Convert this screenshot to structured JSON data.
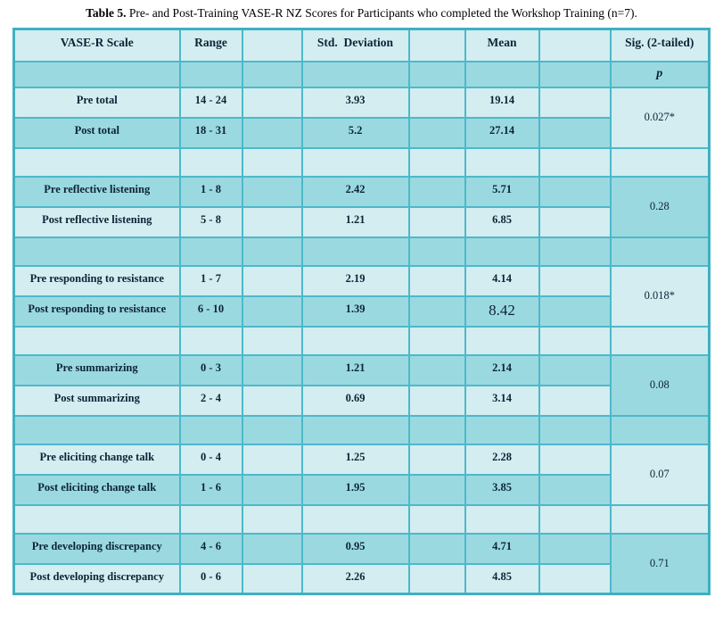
{
  "title": {
    "label": "Table 5.",
    "text": " Pre- and Post-Training VASE-R NZ Scores for Participants who completed the Workshop Training (n=7)."
  },
  "table": {
    "headers": [
      "VASE-R Scale",
      "Range",
      "",
      "Std.  Deviation",
      "",
      "Mean",
      "",
      "Sig. (2-tailed)"
    ],
    "p_label": "p",
    "blocks": [
      {
        "sig": "0.027*",
        "rows": [
          {
            "scale": "Pre total",
            "range": "14 - 24",
            "std": "3.93",
            "mean": "19.14"
          },
          {
            "scale": "Post total",
            "range": "18 - 31",
            "std": "5.2",
            "mean": "27.14"
          }
        ]
      },
      {
        "sig": "0.28",
        "rows": [
          {
            "scale": "Pre reflective listening",
            "range": "1 - 8",
            "std": "2.42",
            "mean": "5.71"
          },
          {
            "scale": "Post reflective listening",
            "range": "5 - 8",
            "std": "1.21",
            "mean": "6.85"
          }
        ]
      },
      {
        "sig": "0.018*",
        "rows": [
          {
            "scale": "Pre responding to resistance",
            "range": "1 - 7",
            "std": "2.19",
            "mean": "4.14"
          },
          {
            "scale": "Post responding to resistance",
            "range": "6 - 10",
            "std": "1.39",
            "mean": "8.42",
            "mean_large": true
          }
        ]
      },
      {
        "sig": "0.08",
        "rows": [
          {
            "scale": "Pre summarizing",
            "range": "0 - 3",
            "std": "1.21",
            "mean": "2.14"
          },
          {
            "scale": "Post summarizing",
            "range": "2 - 4",
            "std": "0.69",
            "mean": "3.14"
          }
        ]
      },
      {
        "sig": "0.07",
        "rows": [
          {
            "scale": "Pre eliciting change talk",
            "range": "0 - 4",
            "std": "1.25",
            "mean": "2.28"
          },
          {
            "scale": "Post eliciting change talk",
            "range": "1 - 6",
            "std": "1.95",
            "mean": "3.85"
          }
        ]
      },
      {
        "sig": "0.71",
        "rows": [
          {
            "scale": "Pre developing discrepancy",
            "range": "4 - 6",
            "std": "0.95",
            "mean": "4.71"
          },
          {
            "scale": "Post developing discrepancy",
            "range": "0 - 6",
            "std": "2.26",
            "mean": "4.85"
          }
        ]
      }
    ],
    "colors": {
      "row_light": "#d3edf1",
      "row_dark": "#9bd9e1",
      "grid": "#4cb9c9",
      "outer": "#3fb0c2",
      "text": "#0d2436"
    }
  }
}
